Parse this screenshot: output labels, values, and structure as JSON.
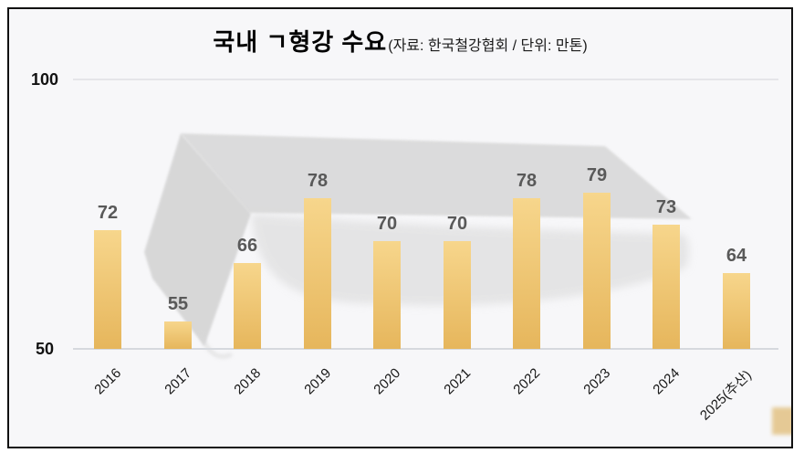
{
  "chart_data": {
    "type": "bar",
    "title": "국내 ㄱ형강 수요",
    "subtitle": "(자료: 한국철강협회 / 단위: 만톤)",
    "categories": [
      "2016",
      "2017",
      "2018",
      "2019",
      "2020",
      "2021",
      "2022",
      "2023",
      "2024",
      "2025(추산)"
    ],
    "values": [
      72,
      55,
      66,
      78,
      70,
      70,
      78,
      79,
      73,
      64
    ],
    "xlabel": "",
    "ylabel": "",
    "unit": "만톤",
    "source": "한국철강협회",
    "ylim": [
      50,
      100
    ],
    "yticks": [
      50,
      100
    ],
    "grid": "horizontal lines at y=50 and y=100 only",
    "legend": "none",
    "x_label_rotation_deg": -44,
    "watermark": "gray 3D angle-steel (ㄱ형강) silhouette behind bars"
  },
  "colors": {
    "background": "#f7f7f9",
    "border": "#111111",
    "bar_top": "#f7d68c",
    "bar_bottom": "#e6b65c",
    "value_label": "#595959",
    "axis_text": "#1a1a1a",
    "tick_text": "#111111",
    "gridline": "#e5e5e9",
    "axis_line": "#d6d9de",
    "watermark_face": "#d7d7d7",
    "watermark_flange": "#d2d2d2",
    "watermark_shadow": "#d9d9d9",
    "watermark_patch": "#dcb261"
  }
}
